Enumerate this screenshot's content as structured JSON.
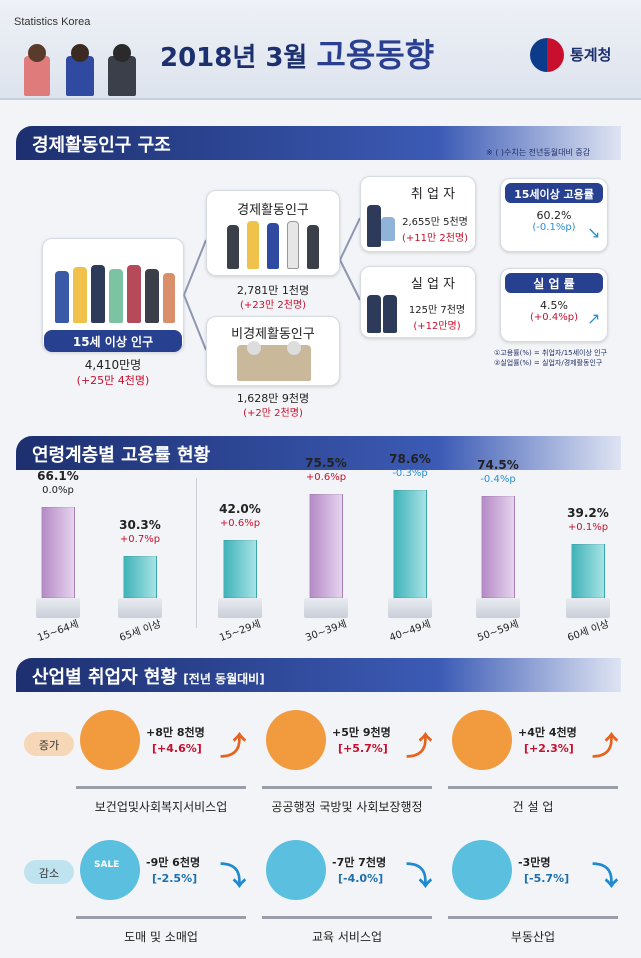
{
  "header": {
    "brand": "Statistics Korea",
    "title_prefix": "2018년 3월",
    "title_main": "고용동향",
    "logo_text": "통계청"
  },
  "sec1": {
    "title": "경제활동인구 구조",
    "note": "※ ( )수치는 전년동월대비 증감",
    "pop15": {
      "label": "15세 이상 인구",
      "value": "4,410만명",
      "change": "(+25만 4천명)"
    },
    "active": {
      "label": "경제활동인구",
      "value": "2,781만 1천명",
      "change": "(+23만 2천명)"
    },
    "inactive": {
      "label": "비경제활동인구",
      "value": "1,628만 9천명",
      "change": "(+2만 2천명)"
    },
    "employed": {
      "label": "취 업 자",
      "value": "2,655만 5천명",
      "change": "(+11만 2천명)"
    },
    "unemployed": {
      "label": "실 업 자",
      "value": "125만 7천명",
      "change": "(+12만명)"
    },
    "emp_rate": {
      "label": "15세이상 고용률",
      "value": "60.2%",
      "change": "(-0.1%p)"
    },
    "unemp_rate": {
      "label": "실 업 률",
      "value": "4.5%",
      "change": "(+0.4%p)"
    },
    "footnote1": "①고용률(%) = 취업자/15세이상 인구",
    "footnote2": "②실업률(%) = 실업자/경제활동인구"
  },
  "sec2": {
    "title": "연령계층별 고용률 현황"
  },
  "chart_data": {
    "type": "bar",
    "categories": [
      "15~64세",
      "65세 이상",
      "15~29세",
      "30~39세",
      "40~49세",
      "50~59세",
      "60세 이상"
    ],
    "values": [
      66.1,
      30.3,
      42.0,
      75.5,
      78.6,
      74.5,
      39.2
    ],
    "value_labels": [
      "66.1%",
      "30.3%",
      "42.0%",
      "75.5%",
      "78.6%",
      "74.5%",
      "39.2%"
    ],
    "changes": [
      "0.0%p",
      "+0.7%p",
      "+0.6%p",
      "+0.6%p",
      "-0.3%p",
      "-0.4%p",
      "+0.1%p"
    ],
    "colors": {
      "purple": "#c9a9d6",
      "teal": "#5cc7cc",
      "pos": "#c8102e",
      "neg": "#2a8fd0",
      "zero": "#222222"
    }
  },
  "sec3": {
    "title": "산업별 취업자 현황",
    "subtitle": "[전년 동월대비]",
    "tag_up": "증가",
    "tag_down": "감소",
    "items": [
      {
        "name": "보건업및사회복지서비스업",
        "value": "+8만 8천명",
        "pct": "[+4.6%]"
      },
      {
        "name": "공공행정 국방및 사회보장행정",
        "value": "+5만 9천명",
        "pct": "[+5.7%]"
      },
      {
        "name": "건 설 업",
        "value": "+4만 4천명",
        "pct": "[+2.3%]"
      },
      {
        "name": "도매 및 소매업",
        "value": "-9만 6천명",
        "pct": "[-2.5%]"
      },
      {
        "name": "교육 서비스업",
        "value": "-7만 7천명",
        "pct": "[-4.0%]"
      },
      {
        "name": "부동산업",
        "value": "-3만명",
        "pct": "[-5.7%]"
      }
    ],
    "sale_text": "SALE"
  }
}
